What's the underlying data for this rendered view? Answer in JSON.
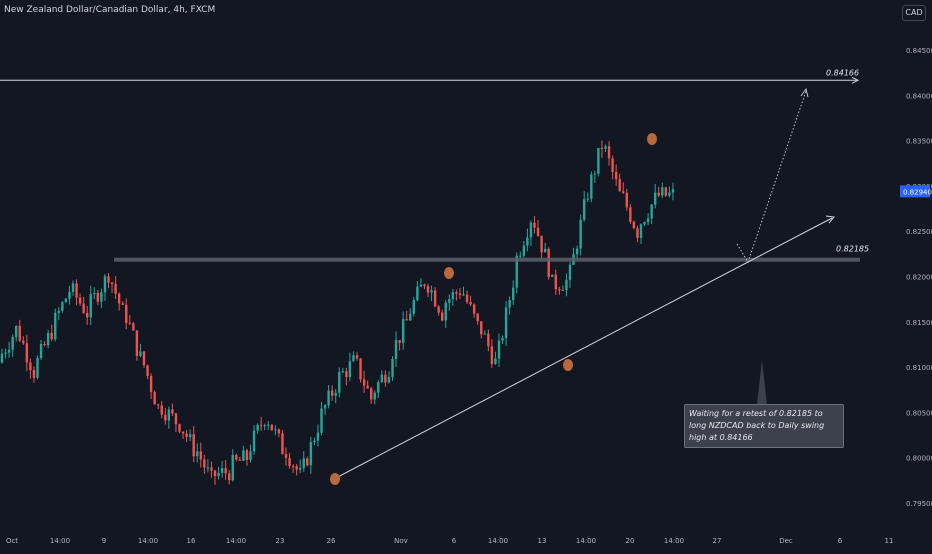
{
  "header": {
    "title": "New Zealand Dollar/Canadian Dollar, 4h, FXCM",
    "currency": "CAD"
  },
  "colors": {
    "background": "#131722",
    "up": "#26a69a",
    "down": "#ef5350",
    "swing_marker": "#b9693c",
    "resistance_line": "#5d606b",
    "trendline": "#d1d4dc",
    "price_badge": "#2962ff"
  },
  "chart_data": {
    "type": "candlestick",
    "ylim": [
      0.793,
      0.848
    ],
    "y_ticks": [
      "0.84500",
      "0.84000",
      "0.83500",
      "0.83000",
      "0.82500",
      "0.82000",
      "0.81500",
      "0.81000",
      "0.80500",
      "0.80000",
      "0.79500"
    ],
    "x_ticks": [
      "Oct",
      "14:00",
      "9",
      "14:00",
      "16",
      "14:00",
      "23",
      "26",
      "Nov",
      "6",
      "14:00",
      "13",
      "14:00",
      "20",
      "14:00",
      "27",
      "Dec",
      "6",
      "11"
    ],
    "last_price": "0.82940",
    "levels": [
      {
        "name": "daily-swing-high",
        "value": 0.84166,
        "label": "0.84166"
      },
      {
        "name": "retest-level",
        "value": 0.82185,
        "label": "0.82185"
      }
    ],
    "callout": "Waiting for a retest of 0.82185 to long NZDCAD back to Daily swing high at 0.84166",
    "anchors": [
      [
        0.8105,
        0.8108
      ],
      [
        0.8142,
        0.8145
      ],
      [
        0.8095,
        0.8098
      ],
      [
        0.814,
        0.8143
      ],
      [
        0.8185,
        0.8188
      ],
      [
        0.816,
        0.8164
      ],
      [
        0.8195,
        0.8215
      ],
      [
        0.816,
        0.8168
      ],
      [
        0.811,
        0.8114
      ],
      [
        0.8055,
        0.806
      ],
      [
        0.804,
        0.8045
      ],
      [
        0.801,
        0.8015
      ],
      [
        0.7975,
        0.798
      ],
      [
        0.7985,
        0.799
      ],
      [
        0.8,
        0.8005
      ],
      [
        0.8045,
        0.805
      ],
      [
        0.801,
        0.8015
      ],
      [
        0.798,
        0.7978
      ],
      [
        0.8035,
        0.804
      ],
      [
        0.808,
        0.8085
      ],
      [
        0.8105,
        0.811
      ],
      [
        0.8065,
        0.807
      ],
      [
        0.81,
        0.811
      ],
      [
        0.815,
        0.8155
      ],
      [
        0.8195,
        0.82
      ],
      [
        0.816,
        0.817
      ],
      [
        0.8185,
        0.819
      ],
      [
        0.8145,
        0.815
      ],
      [
        0.8105,
        0.81
      ],
      [
        0.8195,
        0.821
      ],
      [
        0.8265,
        0.8272
      ],
      [
        0.821,
        0.819
      ],
      [
        0.8195,
        0.8185
      ],
      [
        0.8275,
        0.828
      ],
      [
        0.8345,
        0.835
      ],
      [
        0.829,
        0.8295
      ],
      [
        0.825,
        0.8255
      ],
      [
        0.8285,
        0.8289
      ],
      [
        0.829,
        0.8285
      ]
    ]
  }
}
